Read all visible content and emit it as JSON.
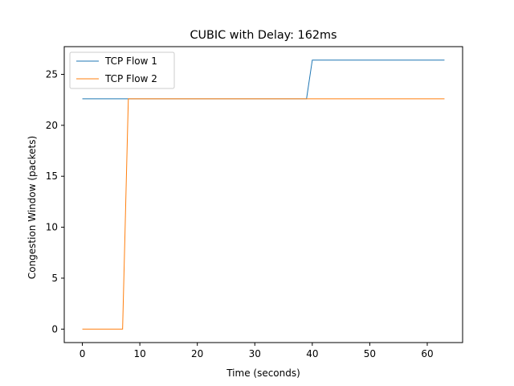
{
  "chart_data": {
    "type": "line",
    "title": "CUBIC with Delay: 162ms",
    "xlabel": "Time (seconds)",
    "ylabel": "Congestion Window (packets)",
    "xlim": [
      -3.15,
      66.15
    ],
    "ylim": [
      -1.32,
      27.72
    ],
    "xticks": [
      0,
      10,
      20,
      30,
      40,
      50,
      60
    ],
    "yticks": [
      0,
      5,
      10,
      15,
      20,
      25
    ],
    "grid": false,
    "legend_position": "upper-left",
    "series": [
      {
        "name": "TCP Flow 1",
        "color": "#1f77b4",
        "x": [
          0,
          39,
          40,
          63
        ],
        "y": [
          22.6,
          22.6,
          26.4,
          26.4
        ]
      },
      {
        "name": "TCP Flow 2",
        "color": "#ff7f0e",
        "x": [
          0,
          7,
          8,
          63
        ],
        "y": [
          0,
          0,
          22.6,
          22.6
        ]
      }
    ]
  }
}
